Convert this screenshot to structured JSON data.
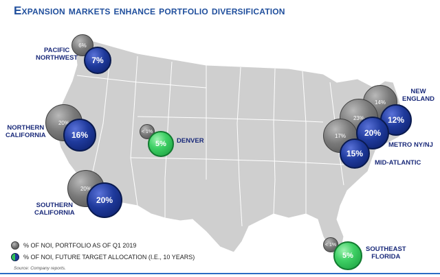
{
  "title": "Expansion markets enhance portfolio diversification",
  "regions": {
    "pacific_nw": {
      "label_line1": "PACIFIC",
      "label_line2": "NORTHWEST",
      "current": "6%",
      "target": "7%"
    },
    "northern_ca": {
      "label_line1": "NORTHERN",
      "label_line2": "CALIFORNIA",
      "current": "20%",
      "target": "16%"
    },
    "southern_ca": {
      "label_line1": "SOUTHERN",
      "label_line2": "CALIFORNIA",
      "current": "20%",
      "target": "20%"
    },
    "denver": {
      "label": "DENVER",
      "current": "< 1%",
      "target": "5%"
    },
    "new_england": {
      "label_line1": "NEW",
      "label_line2": "ENGLAND",
      "current": "14%",
      "target": "12%"
    },
    "metro_ny_nj": {
      "label": "METRO NY/NJ",
      "current": "23%",
      "target": "20%"
    },
    "mid_atlantic": {
      "label": "MID-ATLANTIC",
      "current": "17%",
      "target": "15%"
    },
    "southeast_fl": {
      "label_line1": "SOUTHEAST",
      "label_line2": "FLORIDA",
      "current": "< 1%",
      "target": "5%"
    }
  },
  "legend": {
    "current": "% OF NOI, PORTFOLIO AS OF Q1 2019",
    "target": "% OF NOI, FUTURE TARGET ALLOCATION (I.E., 10 YEARS)"
  },
  "source": "Source:  Company reports.",
  "colors": {
    "title": "#1f4e9c",
    "label": "#1a2a7a",
    "current": "#6b6b6b",
    "target": "#1f3a9c",
    "expansion": "#2fbf55",
    "map": "#cfcfcf"
  }
}
